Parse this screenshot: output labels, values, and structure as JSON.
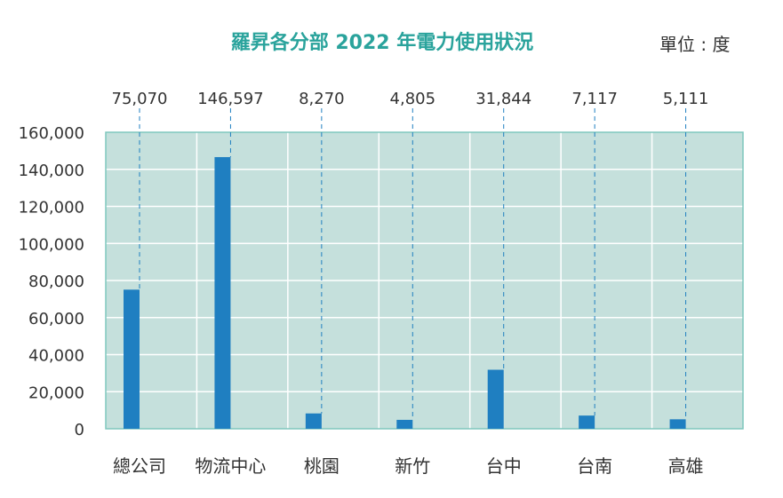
{
  "chart_data": {
    "type": "bar",
    "title": "羅昇各分部 2022 年電力使用狀況",
    "unit_label": "單位 : 度",
    "categories": [
      "總公司",
      "物流中心",
      "桃園",
      "新竹",
      "台中",
      "台南",
      "高雄"
    ],
    "values": [
      75070,
      146597,
      8270,
      4805,
      31844,
      7117,
      5111
    ],
    "value_labels": [
      "75,070",
      "146,597",
      "8,270",
      "4,805",
      "31,844",
      "7,117",
      "5,111"
    ],
    "y_ticks": [
      0,
      20000,
      40000,
      60000,
      80000,
      100000,
      120000,
      140000,
      160000
    ],
    "y_tick_labels": [
      "0",
      "20,000",
      "40,000",
      "60,000",
      "80,000",
      "100,000",
      "120,000",
      "140,000",
      "160,000"
    ],
    "ylim": [
      0,
      160000
    ],
    "grid": true,
    "colors": {
      "bar": "#1f7fc1",
      "plot_background": "#c5e0dc",
      "plot_border": "#7fc7bd",
      "grid": "#ffffff",
      "title": "#2aa39c",
      "leader_line": "#1f7fc1"
    }
  }
}
